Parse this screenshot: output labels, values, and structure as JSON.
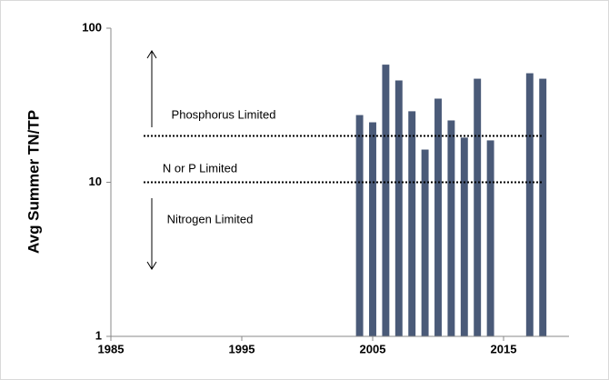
{
  "chart_data": {
    "type": "bar",
    "y_label": "Avg Summer TN/TP",
    "x": [
      2004,
      2005,
      2006,
      2007,
      2008,
      2009,
      2010,
      2011,
      2012,
      2013,
      2014,
      2017,
      2018
    ],
    "values": [
      27.3,
      24.5,
      58,
      45.8,
      28.9,
      16.3,
      34.9,
      25.2,
      19.5,
      47,
      18.7,
      51,
      47
    ],
    "color": "#4a5a78",
    "xlim": [
      1985,
      2020
    ],
    "xticks": [
      1985,
      1995,
      2005,
      2015
    ],
    "ylim": [
      1,
      100
    ],
    "yticks": [
      1,
      10,
      100
    ],
    "log_y": true,
    "grid": false,
    "reference_lines": [
      20,
      10
    ],
    "annotations": [
      "Phosphorus Limited",
      "N or P Limited",
      "Nitrogen Limited"
    ]
  }
}
